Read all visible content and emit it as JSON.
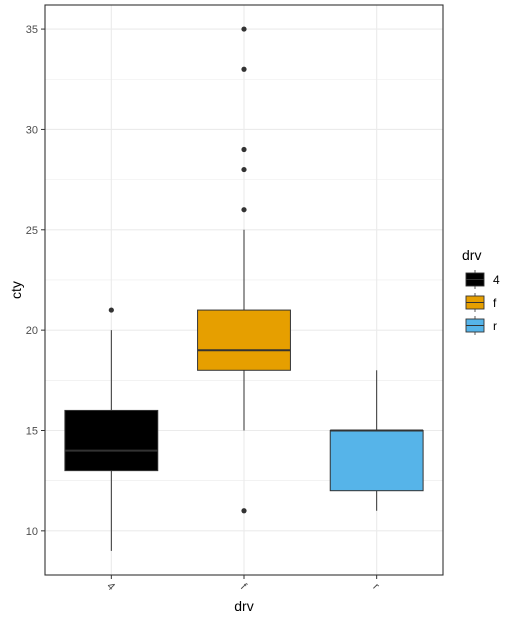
{
  "chart_data": {
    "type": "boxplot",
    "xlabel": "drv",
    "ylabel": "cty",
    "categories": [
      "4",
      "f",
      "r"
    ],
    "ylim": [
      7.8,
      36.2
    ],
    "yticks": [
      10,
      15,
      20,
      25,
      30,
      35
    ],
    "grid": true,
    "boxes": [
      {
        "category": "4",
        "whisker_low": 9,
        "q1": 13,
        "median": 14,
        "q3": 16,
        "whisker_high": 20,
        "outliers": [
          21
        ],
        "color": "#000000"
      },
      {
        "category": "f",
        "whisker_low": 15,
        "q1": 18,
        "median": 19,
        "q3": 21,
        "whisker_high": 25,
        "outliers": [
          11,
          26,
          28,
          29,
          33,
          35
        ],
        "color": "#E69F00"
      },
      {
        "category": "r",
        "whisker_low": 11,
        "q1": 12,
        "median": 15,
        "q3": 15,
        "whisker_high": 18,
        "outliers": [],
        "color": "#56B4E9"
      }
    ],
    "legend": {
      "title": "drv",
      "placement": "right",
      "entries": [
        {
          "label": "4",
          "color": "#000000"
        },
        {
          "label": "f",
          "color": "#E69F00"
        },
        {
          "label": "r",
          "color": "#56B4E9"
        }
      ]
    }
  }
}
